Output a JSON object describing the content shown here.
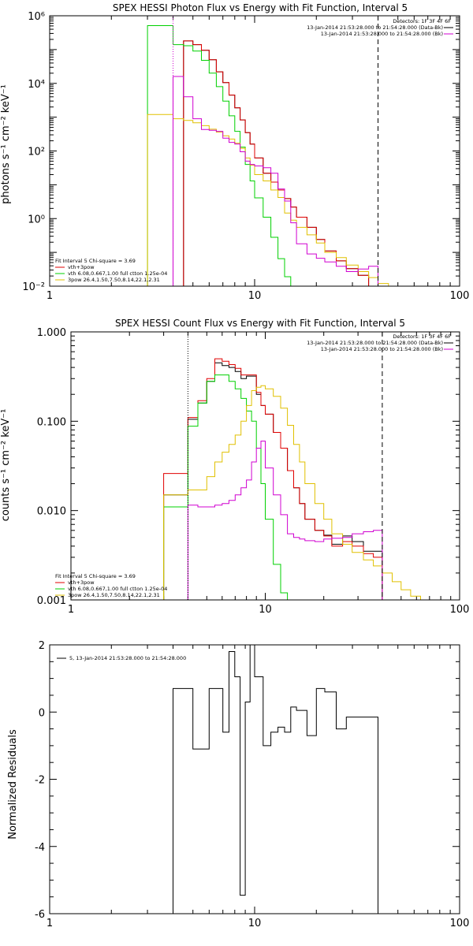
{
  "chart_data": [
    {
      "type": "line",
      "title": "SPEX HESSI Photon Flux vs Energy with Fit Function, Interval 5",
      "ylabel": "photons s⁻¹ cm⁻² keV⁻¹",
      "xscale": "log",
      "yscale": "log",
      "xlim": [
        1,
        100
      ],
      "ylim": [
        0.01,
        1000000
      ],
      "x_ticks": [
        {
          "v": 1,
          "label": "1"
        },
        {
          "v": 10,
          "label": "10"
        },
        {
          "v": 100,
          "label": "100"
        }
      ],
      "y_ticks": [
        {
          "v": 0.01,
          "label": "10⁻²"
        },
        {
          "v": 1,
          "label": "10⁰"
        },
        {
          "v": 100,
          "label": "10²"
        },
        {
          "v": 10000,
          "label": "10⁴"
        },
        {
          "v": 1000000,
          "label": "10⁶"
        }
      ],
      "bin_edges": [
        3.0,
        3.5,
        4.0,
        4.5,
        5.0,
        5.5,
        6.0,
        6.5,
        7.0,
        7.5,
        8.0,
        8.5,
        9.0,
        9.5,
        10.0,
        11.0,
        12.0,
        13.0,
        14.0,
        15.0,
        16.0,
        18.0,
        20.0,
        22.0,
        25.0,
        28.0,
        32.0,
        36.0,
        40.0,
        45.0,
        50.0
      ],
      "vlines": [
        {
          "x": 4.0,
          "style": "dotted",
          "color": "#d000d0"
        },
        {
          "x": 40.0,
          "style": "dashed",
          "color": "#000000"
        }
      ],
      "series": [
        {
          "name": "",
          "color": "#000000",
          "start_edge": 3,
          "end_edge": 27,
          "values": [
            180000,
            140000,
            95000,
            50000,
            22000,
            10500,
            4500,
            1900,
            830,
            350,
            160,
            62,
            22,
            12,
            7,
            3.9,
            2.2,
            1.1,
            0.55,
            0.24,
            0.11,
            0.056,
            0.033,
            0.021
          ]
        },
        {
          "name": "vth+3pow",
          "color": "#e00000",
          "start_edge": 3,
          "end_edge": 27,
          "values": [
            180000,
            140000,
            95000,
            50000,
            22000,
            10500,
            4500,
            1900,
            830,
            350,
            160,
            62,
            22,
            12,
            7,
            3.9,
            2.2,
            1.1,
            0.55,
            0.24,
            0.11,
            0.056,
            0.033,
            0.021
          ]
        },
        {
          "name": "vth 6.08,0.667,1.00  full ctton 1.25e-04",
          "color": "#00d000",
          "start_edge": 0,
          "end_edge": 20,
          "values": [
            510000,
            510000,
            140000,
            130000,
            90000,
            48000,
            20000,
            8000,
            3000,
            1100,
            380,
            130,
            40,
            13,
            4.1,
            1.1,
            0.28,
            0.065,
            0.019,
            0.005
          ]
        },
        {
          "name": "3pow 26.4,1.50,7.50,8.14,22.1,2.31",
          "color": "#e0c000",
          "start_edge": 0,
          "end_edge": 30,
          "values": [
            1200,
            1200,
            900,
            800,
            680,
            560,
            440,
            360,
            280,
            225,
            170,
            120,
            62,
            38,
            20,
            13,
            7,
            4.2,
            1.45,
            0.9,
            0.55,
            0.33,
            0.19,
            0.1,
            0.07,
            0.042,
            0.027,
            0.018,
            0.012,
            0.009
          ]
        },
        {
          "name": "",
          "color": "#d000d0",
          "start_edge": 2,
          "end_edge": 28,
          "values": [
            16000,
            4000,
            900,
            430,
            410,
            380,
            240,
            180,
            160,
            95,
            50,
            40,
            36,
            32,
            22,
            7.5,
            3.3,
            0.75,
            0.18,
            0.09,
            0.067,
            0.052,
            0.039,
            0.027,
            0.032,
            0.039
          ]
        }
      ]
    },
    {
      "type": "line",
      "title": "SPEX HESSI Count Flux vs Energy with Fit Function, Interval 5",
      "ylabel": "counts s⁻¹ cm⁻² keV⁻¹",
      "xscale": "log",
      "yscale": "log",
      "xlim": [
        1,
        100
      ],
      "ylim": [
        0.001,
        1.0
      ],
      "x_ticks": [
        {
          "v": 1,
          "label": "1"
        },
        {
          "v": 10,
          "label": "10"
        },
        {
          "v": 100,
          "label": "100"
        }
      ],
      "y_ticks": [
        {
          "v": 0.001,
          "label": "0.001"
        },
        {
          "v": 0.01,
          "label": "0.010"
        },
        {
          "v": 0.1,
          "label": "0.100"
        },
        {
          "v": 1,
          "label": "1.000"
        }
      ],
      "bin_edges": [
        3.0,
        3.5,
        4.0,
        4.5,
        5.0,
        5.5,
        6.0,
        6.5,
        7.0,
        7.5,
        8.0,
        8.5,
        9.0,
        9.5,
        10.0,
        11.0,
        12.0,
        13.0,
        14.0,
        15.0,
        16.0,
        18.0,
        20.0,
        22.0,
        25.0,
        28.0,
        32.0,
        36.0,
        40.0,
        45.0,
        50.0,
        56.0,
        63.0,
        70.0
      ],
      "vlines": [
        {
          "x": 4.0,
          "style": "dotted",
          "color": "#000000"
        },
        {
          "x": 40.0,
          "style": "dashed",
          "color": "#000000"
        }
      ],
      "series": [
        {
          "name": "",
          "color": "#000000",
          "start_edge": 0,
          "end_edge": 28,
          "values": [
            0.015,
            0.015,
            0.105,
            0.16,
            0.28,
            0.45,
            0.42,
            0.4,
            0.36,
            0.3,
            0.32,
            0.32,
            0.2,
            0.15,
            0.12,
            0.075,
            0.05,
            0.028,
            0.018,
            0.012,
            0.008,
            0.006,
            0.0053,
            0.0042,
            0.0052,
            0.0045,
            0.0035,
            0.0035
          ]
        },
        {
          "name": "vth+3pow",
          "color": "#e00000",
          "start_edge": 0,
          "end_edge": 28,
          "values": [
            0.026,
            0.026,
            0.11,
            0.17,
            0.3,
            0.5,
            0.47,
            0.43,
            0.39,
            0.33,
            0.33,
            0.33,
            0.21,
            0.15,
            0.12,
            0.075,
            0.05,
            0.028,
            0.018,
            0.012,
            0.008,
            0.006,
            0.0052,
            0.004,
            0.0045,
            0.004,
            0.0033,
            0.003
          ]
        },
        {
          "name": "vth 6.08,0.667,1.00  full ctton 1.25e-04",
          "color": "#00d000",
          "start_edge": 0,
          "end_edge": 19,
          "values": [
            0.011,
            0.011,
            0.088,
            0.16,
            0.28,
            0.33,
            0.33,
            0.28,
            0.23,
            0.18,
            0.13,
            0.1,
            0.05,
            0.02,
            0.008,
            0.0025,
            0.0012,
            0.001,
            0.001
          ]
        },
        {
          "name": "3pow 26.4,1.50,7.50,8.14,22.1,2.31",
          "color": "#e0c000",
          "start_edge": 0,
          "end_edge": 33,
          "values": [
            0.015,
            0.015,
            0.017,
            0.017,
            0.024,
            0.035,
            0.045,
            0.055,
            0.07,
            0.1,
            0.15,
            0.22,
            0.24,
            0.25,
            0.23,
            0.19,
            0.14,
            0.09,
            0.055,
            0.035,
            0.02,
            0.012,
            0.008,
            0.0055,
            0.0042,
            0.0034,
            0.0028,
            0.0024,
            0.002,
            0.0016,
            0.0013,
            0.0011,
            0.001
          ]
        },
        {
          "name": "",
          "color": "#d000d0",
          "start_edge": 2,
          "end_edge": 28,
          "values": [
            0.0115,
            0.011,
            0.011,
            0.0115,
            0.012,
            0.013,
            0.015,
            0.018,
            0.022,
            0.035,
            0.05,
            0.06,
            0.03,
            0.015,
            0.009,
            0.0055,
            0.005,
            0.0048,
            0.0046,
            0.0045,
            0.0048,
            0.0049,
            0.005,
            0.0055,
            0.0058,
            0.006
          ]
        }
      ]
    },
    {
      "type": "line",
      "title": "",
      "ylabel": "Normalized  Residuals",
      "xscale": "log",
      "yscale": "linear",
      "xlim": [
        1,
        100
      ],
      "ylim": [
        -6,
        2
      ],
      "x_ticks": [
        {
          "v": 1,
          "label": "1"
        },
        {
          "v": 10,
          "label": "10"
        },
        {
          "v": 100,
          "label": "100"
        }
      ],
      "y_ticks": [
        {
          "v": 2,
          "label": "2"
        },
        {
          "v": 0,
          "label": "0"
        },
        {
          "v": -2,
          "label": "-2"
        },
        {
          "v": -4,
          "label": "-4"
        },
        {
          "v": -6,
          "label": "-6"
        }
      ],
      "bin_edges": [
        4.0,
        4.5,
        5.0,
        5.5,
        6.0,
        6.5,
        7.0,
        7.5,
        8.0,
        8.5,
        9.0,
        9.5,
        10.0,
        11.0,
        12.0,
        13.0,
        14.0,
        15.0,
        16.0,
        18.0,
        20.0,
        22.0,
        25.0,
        28.0,
        32.0,
        36.0,
        40.0
      ],
      "series": [
        {
          "name": "5, 13-Jan-2014 21:53:28.000 to 21:54:28.000",
          "color": "#000000",
          "start_edge": 0,
          "end_edge": 26,
          "values": [
            0.7,
            0.7,
            -1.1,
            -1.1,
            0.7,
            0.7,
            -0.6,
            1.8,
            1.05,
            -5.45,
            0.3,
            2.0,
            1.05,
            -1.0,
            -0.6,
            -0.45,
            -0.6,
            0.15,
            0.05,
            -0.7,
            0.7,
            0.6,
            -0.5,
            -0.15,
            -0.15,
            -0.15
          ]
        }
      ]
    }
  ],
  "legends": {
    "photon": {
      "detectors": "Detectors: 1F 3F 4F 6F",
      "data_line": "13-Jan-2014 21:53:28.000 to 21:54:28.000 (Data-Bk)",
      "bk_line": "13-Jan-2014 21:53:28.000 to 21:54:28.000 (Bk)",
      "fit_title": "Fit Interval  5     Chi-square = 3.69"
    },
    "count": {
      "detectors": "Detectors: 1F 3F 4F 6F",
      "data_line": "13-Jan-2014 21:53:28.000 to 21:54:28.000 (Data-Bk)",
      "bk_line": "13-Jan-2014 21:53:28.000 to 21:54:28.000 (Bk)",
      "fit_title": "Fit Interval  5     Chi-square = 3.69"
    }
  }
}
